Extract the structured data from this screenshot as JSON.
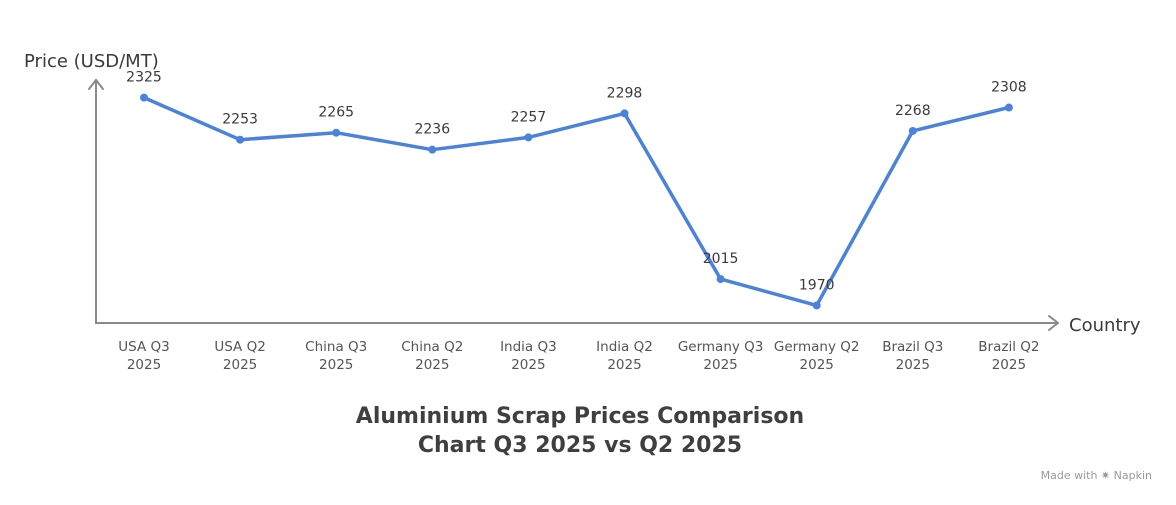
{
  "chart_data": {
    "type": "line",
    "title": "Aluminium Scrap Prices Comparison Chart Q3 2025 vs Q2 2025",
    "xlabel": "Country",
    "ylabel": "Price (USD/MT)",
    "categories": [
      [
        "USA Q3",
        "2025"
      ],
      [
        "USA Q2",
        "2025"
      ],
      [
        "China Q3",
        "2025"
      ],
      [
        "China Q2",
        "2025"
      ],
      [
        "India Q3",
        "2025"
      ],
      [
        "India Q2",
        "2025"
      ],
      [
        "Germany Q3",
        "2025"
      ],
      [
        "Germany Q2",
        "2025"
      ],
      [
        "Brazil Q3",
        "2025"
      ],
      [
        "Brazil Q2",
        "2025"
      ]
    ],
    "series": [
      {
        "values": [
          2325,
          2253,
          2265,
          2236,
          2257,
          2298,
          2015,
          1970,
          2268,
          2308
        ]
      }
    ],
    "ylim": [
      1940,
      2355
    ],
    "grid": false,
    "colors": {
      "line": "#4a82dc",
      "axis": "#8a8a8a"
    }
  },
  "watermark": "Made with ✷ Napkin"
}
